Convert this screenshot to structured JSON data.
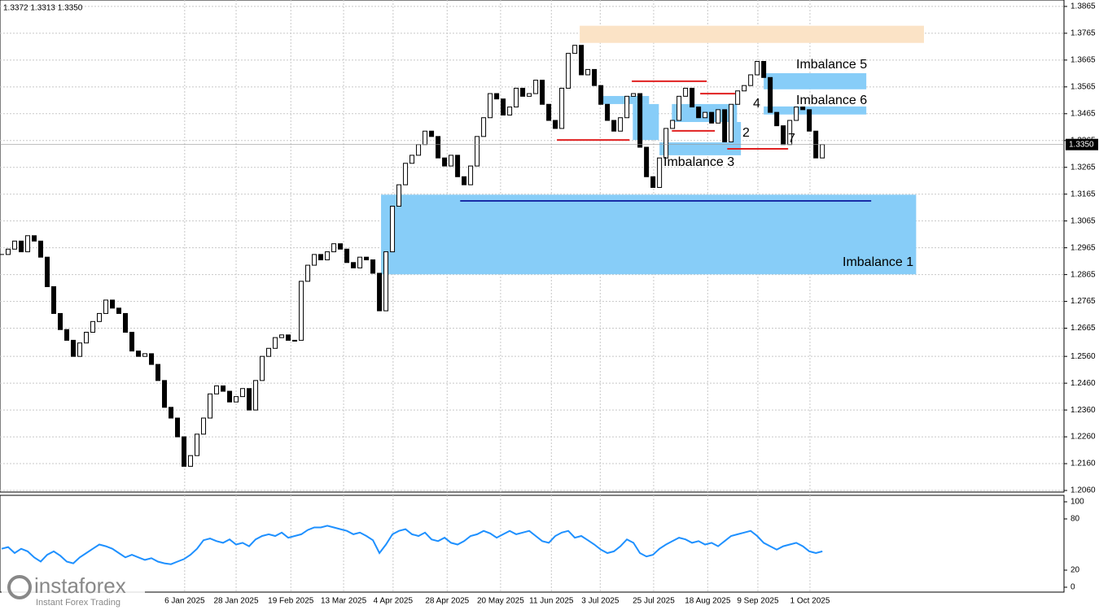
{
  "header": "1.3372 1.3313 1.3350",
  "watermark": {
    "brand": "instaforex",
    "tagline": "Instant Forex Trading"
  },
  "chart_data": [
    {
      "type": "candlestick",
      "close": [
        1.294,
        1.296,
        1.299,
        1.295,
        1.301,
        1.299,
        1.293,
        1.282,
        1.272,
        1.266,
        1.262,
        1.256,
        1.261,
        1.265,
        1.269,
        1.272,
        1.277,
        1.274,
        1.272,
        1.265,
        1.258,
        1.256,
        1.257,
        1.253,
        1.247,
        1.237,
        1.233,
        1.226,
        1.215,
        1.219,
        1.227,
        1.233,
        1.242,
        1.245,
        1.243,
        1.239,
        1.241,
        1.244,
        1.236,
        1.247,
        1.256,
        1.259,
        1.263,
        1.264,
        1.262,
        1.262,
        1.284,
        1.29,
        1.294,
        1.292,
        1.295,
        1.298,
        1.296,
        1.291,
        1.289,
        1.293,
        1.292,
        1.287,
        1.273,
        1.295,
        1.312,
        1.32,
        1.328,
        1.331,
        1.335,
        1.34,
        1.338,
        1.33,
        1.327,
        1.331,
        1.323,
        1.32,
        1.327,
        1.338,
        1.345,
        1.354,
        1.352,
        1.346,
        1.349,
        1.356,
        1.353,
        1.354,
        1.359,
        1.35,
        1.344,
        1.341,
        1.356,
        1.369,
        1.372,
        1.361,
        1.363,
        1.357,
        1.35,
        1.344,
        1.34,
        1.345,
        1.353,
        1.354,
        1.334,
        1.323,
        1.319,
        1.33,
        1.341,
        1.344,
        1.353,
        1.356,
        1.349,
        1.345,
        1.347,
        1.343,
        1.348,
        1.336,
        1.35,
        1.355,
        1.357,
        1.361,
        1.366,
        1.36,
        1.347,
        1.342,
        1.335,
        1.344,
        1.349,
        1.348,
        1.34,
        1.33,
        1.335
      ],
      "xlim": [
        -0.25,
        163.1
      ],
      "ylim": [
        1.2054,
        1.3889
      ],
      "yticks": [
        1.3865,
        1.3765,
        1.3665,
        1.3565,
        1.3465,
        1.3365,
        1.3265,
        1.3165,
        1.3065,
        1.2965,
        1.2865,
        1.2765,
        1.2665,
        {
          "value": 1.256,
          "label": "1.2560"
        },
        {
          "value": 1.246,
          "label": "1.2460"
        },
        {
          "value": 1.236,
          "label": "1.2360"
        },
        {
          "value": 1.226,
          "label": "1.2260"
        },
        {
          "value": 1.216,
          "label": "1.2160"
        },
        {
          "value": 1.206,
          "label": "1.2060"
        }
      ],
      "xticks": [
        {
          "value": 28.1,
          "label": "6 Jan 2025"
        },
        {
          "value": 36,
          "label": "28 Jan 2025"
        },
        {
          "value": 44.4,
          "label": "19 Feb 2025"
        },
        {
          "value": 52.5,
          "label": "13 Mar 2025"
        },
        {
          "value": 60.1,
          "label": "4 Apr 2025"
        },
        {
          "value": 68.4,
          "label": "28 Apr 2025"
        },
        {
          "value": 76.6,
          "label": "20 May 2025"
        },
        {
          "value": 84.4,
          "label": "11 Jun 2025"
        },
        {
          "value": 91.9,
          "label": "3 Jul 2025"
        },
        {
          "value": 100.1,
          "label": "25 Jul 2025"
        },
        {
          "value": 108.4,
          "label": "18 Aug 2025"
        },
        {
          "value": 116.1,
          "label": "9 Sep 2025"
        },
        {
          "value": 124.1,
          "label": "1 Oct 2025"
        }
      ],
      "grid": true,
      "last_price": {
        "value": 1.335,
        "label": "1.3350"
      },
      "zones": [
        {
          "from": 88.75,
          "to": 141.6,
          "top": 1.3793,
          "bottom": 1.3729,
          "color": "#fbe3c6"
        },
        {
          "label": "Imbalance 1",
          "from": 58.25,
          "to": 140.4,
          "top": 1.3163,
          "bottom": 1.2866,
          "color": "#87cdf8"
        },
        {
          "label": "Imbalance 5",
          "from": 117,
          "to": 132.75,
          "top": 1.3616,
          "bottom": 1.3556,
          "color": "#87cdf8"
        },
        {
          "label": "Imbalance 6",
          "from": 117,
          "to": 132.75,
          "top": 1.3492,
          "bottom": 1.3462,
          "color": "#87cdf8"
        },
        {
          "label": "Imbalance 3",
          "from": 101,
          "to": 113.5,
          "top": 1.3358,
          "bottom": 1.331,
          "color": "#87cdf8"
        },
        {
          "from": 92.25,
          "to": 99.4,
          "top": 1.3531,
          "bottom": 1.3501,
          "color": "#87cdf8"
        },
        {
          "from": 96.9,
          "to": 100.9,
          "top": 1.3501,
          "bottom": 1.3367,
          "color": "#87cdf8"
        },
        {
          "from": 102.9,
          "to": 112.9,
          "top": 1.3501,
          "bottom": 1.3434,
          "color": "#87cdf8"
        },
        {
          "from": 111.9,
          "to": 113.5,
          "top": 1.3434,
          "bottom": 1.3358,
          "color": "#87cdf8"
        }
      ],
      "levels": [
        {
          "from": 85.25,
          "to": 96.4,
          "price": 1.3367,
          "color": "#e02020"
        },
        {
          "from": 96.75,
          "to": 108.25,
          "price": 1.3586,
          "color": "#e02020"
        },
        {
          "from": 102.9,
          "to": 109.5,
          "price": 1.3401,
          "color": "#e02020"
        },
        {
          "from": 107.25,
          "to": 112.6,
          "price": 1.354,
          "color": "#e02020"
        },
        {
          "from": 111.4,
          "to": 120.75,
          "price": 1.3334,
          "color": "#e02020"
        },
        {
          "from": 70.4,
          "to": 133.5,
          "price": 1.314,
          "color": "#1a2ea8"
        }
      ],
      "labels": [
        "2",
        "4",
        "7"
      ]
    },
    {
      "type": "line",
      "values": [
        45,
        47,
        40,
        45,
        42,
        35,
        30,
        38,
        42,
        37,
        30,
        28,
        35,
        40,
        45,
        50,
        48,
        45,
        40,
        35,
        38,
        35,
        32,
        34,
        30,
        28,
        27,
        30,
        33,
        38,
        45,
        55,
        57,
        54,
        52,
        56,
        50,
        52,
        48,
        56,
        60,
        62,
        60,
        64,
        58,
        60,
        62,
        67,
        70,
        70,
        72,
        70,
        68,
        66,
        62,
        64,
        60,
        55,
        40,
        50,
        62,
        66,
        68,
        62,
        60,
        64,
        56,
        54,
        58,
        52,
        50,
        54,
        60,
        62,
        66,
        63,
        58,
        62,
        66,
        62,
        64,
        66,
        60,
        54,
        52,
        60,
        64,
        66,
        58,
        60,
        55,
        50,
        44,
        40,
        42,
        48,
        56,
        52,
        40,
        36,
        38,
        45,
        50,
        54,
        58,
        56,
        52,
        54,
        50,
        52,
        48,
        54,
        60,
        62,
        64,
        66,
        60,
        52,
        48,
        44,
        48,
        50,
        52,
        48,
        42,
        40,
        42
      ],
      "color": "#1e90ff",
      "xlim": [
        -0.25,
        163.1
      ],
      "ylim": [
        -5.7,
        107.6
      ],
      "yticks": [
        100,
        80,
        20,
        0
      ]
    }
  ]
}
